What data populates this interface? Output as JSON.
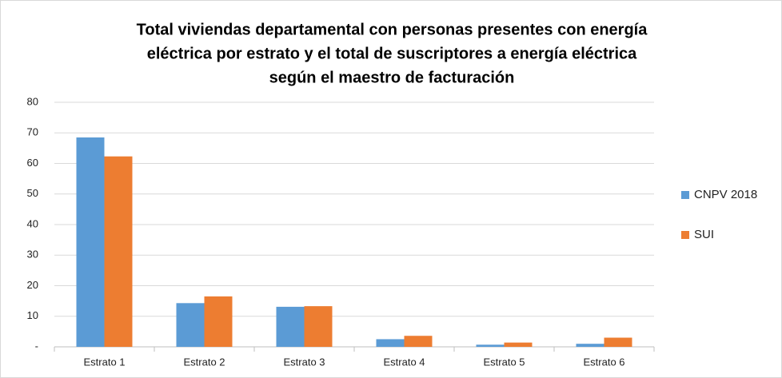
{
  "chart_data": {
    "type": "bar",
    "title": [
      "Total viviendas departamental con personas presentes con energía",
      "eléctrica por estrato y el total de suscriptores a energía eléctrica",
      "según el maestro de facturación"
    ],
    "categories": [
      "Estrato 1",
      "Estrato 2",
      "Estrato 3",
      "Estrato 4",
      "Estrato 5",
      "Estrato 6"
    ],
    "series": [
      {
        "name": "CNPV 2018",
        "color": "#5b9bd5",
        "values": [
          68.5,
          14.3,
          13.1,
          2.5,
          0.7,
          1.0
        ]
      },
      {
        "name": "SUI",
        "color": "#ed7d31",
        "values": [
          62.3,
          16.5,
          13.3,
          3.6,
          1.4,
          3.0
        ]
      }
    ],
    "ylim": [
      0,
      80
    ],
    "yticks": [
      {
        "value": 0,
        "label": "-"
      },
      10,
      20,
      30,
      40,
      50,
      60,
      70,
      80
    ],
    "grid": true,
    "legend": "right"
  }
}
